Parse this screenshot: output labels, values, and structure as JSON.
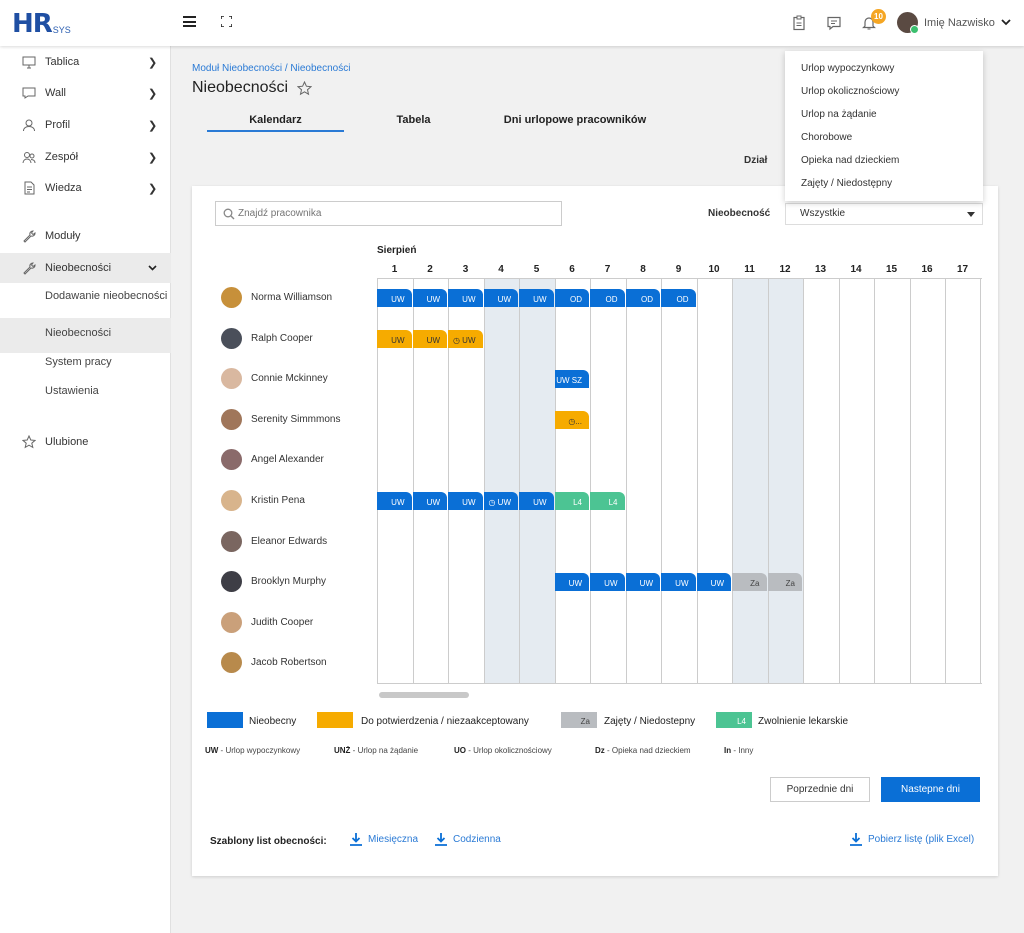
{
  "app": {
    "logo_main": "HR",
    "logo_sub": "SYS"
  },
  "topbar": {
    "notifications_count": "10",
    "user_name": "Imię Nazwisko"
  },
  "sidebar": {
    "items": [
      {
        "label": "Tablica",
        "icon": "monitor-icon"
      },
      {
        "label": "Wall",
        "icon": "chat-icon"
      },
      {
        "label": "Profil",
        "icon": "user-icon"
      },
      {
        "label": "Zespół",
        "icon": "team-icon"
      },
      {
        "label": "Wiedza",
        "icon": "document-icon"
      },
      {
        "label": "Moduły",
        "icon": "wrench-icon"
      },
      {
        "label": "Nieobecności",
        "icon": "wrench-icon"
      }
    ],
    "subitems": [
      "Dodawanie nieobecności",
      "Nieobecności",
      "System pracy",
      "Ustawienia"
    ],
    "favorites": "Ulubione"
  },
  "page": {
    "breadcrumb": "Moduł Nieobecności / Nieobecności",
    "title": "Nieobecności",
    "tabs": [
      "Kalendarz",
      "Tabela",
      "Dni urlopowe pracowników"
    ],
    "dzial_label": "Dział"
  },
  "dropdown": {
    "options": [
      "Urlop wypoczynkowy",
      "Urlop okolicznościowy",
      "Urlop na żądanie",
      "Chorobowe",
      "Opieka nad dzieckiem",
      "Zajęty / Niedostępny"
    ]
  },
  "filters": {
    "search_placeholder": "Znajdź pracownika",
    "nieobecnosc_label": "Nieobecność",
    "nieobecnosc_value": "Wszystkie"
  },
  "calendar": {
    "month": "Sierpień",
    "days": [
      "1",
      "2",
      "3",
      "4",
      "5",
      "6",
      "7",
      "8",
      "9",
      "10",
      "11",
      "12",
      "13",
      "14",
      "15",
      "16",
      "17"
    ],
    "shaded_days": [
      4,
      5,
      11,
      12
    ],
    "employees": [
      "Norma Williamson",
      "Ralph Cooper",
      "Connie Mckinney",
      "Serenity Simmmons",
      "Angel Alexander",
      "Kristin Pena",
      "Eleanor Edwards",
      "Brooklyn Murphy",
      "Judith Cooper",
      "Jacob Robertson"
    ],
    "avatar_colors": [
      "#c7903a",
      "#4a4f5a",
      "#d9b8a0",
      "#a0765a",
      "#8a6a6a",
      "#d8b48c",
      "#7a6660",
      "#3e3e46",
      "#caa07a",
      "#b88a4c"
    ],
    "absences": [
      {
        "row": 0,
        "day": 1,
        "label": "UW",
        "color": "blue"
      },
      {
        "row": 0,
        "day": 2,
        "label": "UW",
        "color": "blue"
      },
      {
        "row": 0,
        "day": 3,
        "label": "UW",
        "color": "blue"
      },
      {
        "row": 0,
        "day": 4,
        "label": "UW",
        "color": "blue"
      },
      {
        "row": 0,
        "day": 5,
        "label": "UW",
        "color": "blue"
      },
      {
        "row": 0,
        "day": 6,
        "label": "OD",
        "color": "blue"
      },
      {
        "row": 0,
        "day": 7,
        "label": "OD",
        "color": "blue"
      },
      {
        "row": 0,
        "day": 8,
        "label": "OD",
        "color": "blue"
      },
      {
        "row": 0,
        "day": 9,
        "label": "OD",
        "color": "blue"
      },
      {
        "row": 1,
        "day": 1,
        "label": "UW",
        "color": "orange"
      },
      {
        "row": 1,
        "day": 2,
        "label": "UW",
        "color": "orange"
      },
      {
        "row": 1,
        "day": 3,
        "label": "◷ UW",
        "color": "orange"
      },
      {
        "row": 2,
        "day": 6,
        "label": "UW SZ",
        "color": "blue"
      },
      {
        "row": 3,
        "day": 6,
        "label": "◷...",
        "color": "orange"
      },
      {
        "row": 5,
        "day": 1,
        "label": "UW",
        "color": "blue"
      },
      {
        "row": 5,
        "day": 2,
        "label": "UW",
        "color": "blue"
      },
      {
        "row": 5,
        "day": 3,
        "label": "UW",
        "color": "blue"
      },
      {
        "row": 5,
        "day": 4,
        "label": "◷ UW",
        "color": "blue"
      },
      {
        "row": 5,
        "day": 5,
        "label": "UW",
        "color": "blue"
      },
      {
        "row": 5,
        "day": 6,
        "label": "L4",
        "color": "green"
      },
      {
        "row": 5,
        "day": 7,
        "label": "L4",
        "color": "green"
      },
      {
        "row": 7,
        "day": 6,
        "label": "UW",
        "color": "blue"
      },
      {
        "row": 7,
        "day": 7,
        "label": "UW",
        "color": "blue"
      },
      {
        "row": 7,
        "day": 8,
        "label": "UW",
        "color": "blue"
      },
      {
        "row": 7,
        "day": 9,
        "label": "UW",
        "color": "blue"
      },
      {
        "row": 7,
        "day": 10,
        "label": "UW",
        "color": "blue"
      },
      {
        "row": 7,
        "day": 11,
        "label": "Za",
        "color": "gray"
      },
      {
        "row": 7,
        "day": 12,
        "label": "Za",
        "color": "gray"
      }
    ]
  },
  "legend": [
    {
      "label": "Nieobecny",
      "swatch": "",
      "color": "#0a6fd6"
    },
    {
      "label": "Do potwierdzenia / niezaakceptowany",
      "swatch": "",
      "color": "#f6ab00"
    },
    {
      "label": "Zajęty / Niedostepny",
      "swatch": "Za",
      "color": "#b9bcc0"
    },
    {
      "label": "Zwolnienie lekarskie",
      "swatch": "L4",
      "color": "#4cc493"
    }
  ],
  "abbreviations": [
    {
      "code": "UW",
      "text": " - Urlop wypoczynkowy"
    },
    {
      "code": "UNŻ",
      "text": " - Urlop na żądanie"
    },
    {
      "code": "UO",
      "text": " - Urlop okolicznościowy"
    },
    {
      "code": "Dz",
      "text": " - Opieka nad dzieckiem"
    },
    {
      "code": "In",
      "text": " - Inny"
    }
  ],
  "buttons": {
    "prev": "Poprzednie dni",
    "next": "Nastepne dni"
  },
  "templates": {
    "label": "Szablony list obecności:",
    "monthly": "Miesięczna",
    "daily": "Codzienna",
    "excel": "Pobierz listę (plik Excel)"
  }
}
